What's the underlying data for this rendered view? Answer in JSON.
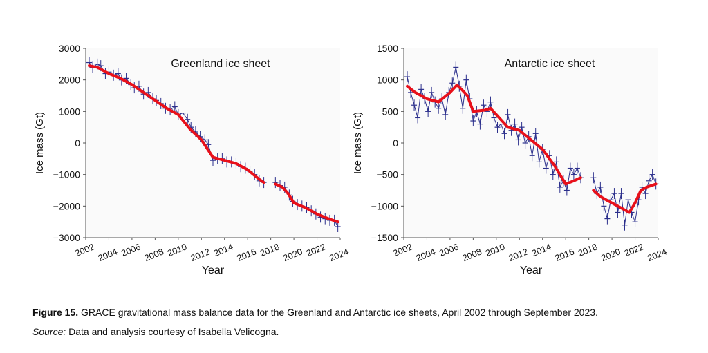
{
  "chart_data": [
    {
      "type": "line",
      "title": "Greenland ice sheet",
      "xlabel": "Year",
      "ylabel": "Ice mass (Gt)",
      "xlim": [
        2002,
        2024
      ],
      "ylim": [
        -3000,
        3000
      ],
      "xticks": [
        "2002",
        "2004",
        "2006",
        "2008",
        "2010",
        "2012",
        "2014",
        "2016",
        "2018",
        "2020",
        "2022",
        "2024"
      ],
      "yticks": [
        "3000",
        "2000",
        "1000",
        "0",
        "−1000",
        "−2000",
        "−3000"
      ],
      "series": [
        {
          "kind": "monthly-observations",
          "color": "#2b2f8c",
          "segments": [
            {
              "x": [
                2002.3,
                2002.6,
                2003.0,
                2003.3,
                2003.7,
                2004.0,
                2004.4,
                2004.8,
                2005.1,
                2005.5,
                2005.9,
                2006.2,
                2006.6,
                2007.0,
                2007.4,
                2007.8,
                2008.1,
                2008.5,
                2008.9,
                2009.3,
                2009.7,
                2010.0,
                2010.4,
                2010.8,
                2011.1,
                2011.5,
                2011.9,
                2012.3,
                2012.6,
                2013.0,
                2013.4,
                2013.8,
                2014.2,
                2014.6,
                2015.0,
                2015.4,
                2015.8,
                2016.2,
                2016.6,
                2017.0,
                2017.4
              ],
              "y": [
                2550,
                2400,
                2500,
                2450,
                2200,
                2250,
                2150,
                2200,
                2000,
                2050,
                1850,
                1750,
                1800,
                1550,
                1600,
                1400,
                1350,
                1250,
                1100,
                1050,
                1150,
                900,
                950,
                750,
                500,
                350,
                200,
                100,
                -50,
                -550,
                -500,
                -500,
                -600,
                -600,
                -650,
                -750,
                -800,
                -900,
                -1000,
                -1200,
                -1250
              ]
            },
            {
              "x": [
                2018.4,
                2018.8,
                2019.2,
                2019.6,
                2019.9,
                2020.3,
                2020.7,
                2021.1,
                2021.5,
                2021.9,
                2022.3,
                2022.7,
                2023.1,
                2023.5,
                2023.8
              ],
              "y": [
                -1250,
                -1350,
                -1400,
                -1650,
                -1850,
                -1950,
                -2000,
                -2050,
                -2150,
                -2250,
                -2350,
                -2400,
                -2450,
                -2450,
                -2650
              ]
            }
          ]
        },
        {
          "kind": "smoothed-trend",
          "color": "#e8101a",
          "segments": [
            {
              "x": [
                2002.3,
                2003.0,
                2004.0,
                2005.0,
                2006.0,
                2007.0,
                2008.0,
                2009.0,
                2010.0,
                2011.0,
                2012.0,
                2013.0,
                2014.0,
                2015.0,
                2016.0,
                2017.0,
                2017.4
              ],
              "y": [
                2450,
                2400,
                2200,
                2050,
                1850,
                1600,
                1350,
                1100,
                900,
                450,
                100,
                -450,
                -550,
                -650,
                -850,
                -1150,
                -1250
              ]
            },
            {
              "x": [
                2018.4,
                2019.0,
                2019.5,
                2020.0,
                2021.0,
                2022.0,
                2023.0,
                2023.8
              ],
              "y": [
                -1300,
                -1400,
                -1600,
                -1900,
                -2050,
                -2250,
                -2400,
                -2500
              ]
            }
          ]
        }
      ]
    },
    {
      "type": "line",
      "title": "Antarctic ice sheet",
      "xlabel": "Year",
      "ylabel": "Ice mass (Gt)",
      "xlim": [
        2002,
        2024
      ],
      "ylim": [
        -1500,
        1500
      ],
      "xticks": [
        "2002",
        "2004",
        "2006",
        "2008",
        "2010",
        "2012",
        "2014",
        "2016",
        "2018",
        "2020",
        "2022",
        "2024"
      ],
      "yticks": [
        "1500",
        "1000",
        "500",
        "0",
        "−500",
        "−1000",
        "−1500"
      ],
      "series": [
        {
          "kind": "monthly-observations",
          "color": "#2b2f8c",
          "segments": [
            {
              "x": [
                2002.3,
                2002.6,
                2002.9,
                2003.2,
                2003.5,
                2003.8,
                2004.1,
                2004.4,
                2004.7,
                2005.0,
                2005.3,
                2005.6,
                2005.9,
                2006.2,
                2006.5,
                2006.8,
                2007.1,
                2007.4,
                2007.7,
                2008.0,
                2008.3,
                2008.6,
                2008.9,
                2009.2,
                2009.5,
                2009.8,
                2010.1,
                2010.4,
                2010.7,
                2011.0,
                2011.3,
                2011.6,
                2011.9,
                2012.2,
                2012.5,
                2012.8,
                2013.1,
                2013.4,
                2013.7,
                2014.0,
                2014.3,
                2014.6,
                2014.9,
                2015.2,
                2015.5,
                2015.8,
                2016.1,
                2016.4,
                2016.7,
                2017.0,
                2017.3
              ],
              "y": [
                1050,
                800,
                600,
                400,
                850,
                700,
                500,
                800,
                650,
                550,
                700,
                450,
                800,
                950,
                1200,
                900,
                550,
                1000,
                700,
                350,
                500,
                300,
                600,
                500,
                650,
                400,
                250,
                300,
                150,
                450,
                200,
                300,
                50,
                250,
                0,
                100,
                -200,
                150,
                -300,
                -100,
                -400,
                -200,
                -500,
                -300,
                -700,
                -600,
                -750,
                -400,
                -500,
                -400,
                -550
              ]
            },
            {
              "x": [
                2018.4,
                2018.7,
                2019.0,
                2019.3,
                2019.6,
                2019.9,
                2020.2,
                2020.5,
                2020.8,
                2021.1,
                2021.4,
                2021.7,
                2022.0,
                2022.3,
                2022.6,
                2022.9,
                2023.2,
                2023.5,
                2023.8
              ],
              "y": [
                -550,
                -800,
                -700,
                -1000,
                -1200,
                -900,
                -800,
                -1100,
                -800,
                -1300,
                -900,
                -1100,
                -1250,
                -900,
                -700,
                -800,
                -600,
                -500,
                -650
              ]
            }
          ]
        },
        {
          "kind": "smoothed-trend",
          "color": "#e8101a",
          "segments": [
            {
              "x": [
                2002.3,
                2003.0,
                2004.0,
                2005.0,
                2006.0,
                2006.6,
                2007.0,
                2007.5,
                2008.0,
                2009.0,
                2009.5,
                2010.0,
                2011.0,
                2012.0,
                2013.0,
                2014.0,
                2015.0,
                2016.0,
                2016.7,
                2017.3
              ],
              "y": [
                900,
                800,
                700,
                650,
                800,
                920,
                850,
                750,
                500,
                520,
                550,
                450,
                250,
                200,
                50,
                -100,
                -350,
                -650,
                -600,
                -550
              ]
            },
            {
              "x": [
                2018.4,
                2019.0,
                2019.5,
                2020.0,
                2020.5,
                2021.0,
                2021.5,
                2022.0,
                2022.5,
                2023.0,
                2023.8
              ],
              "y": [
                -750,
                -850,
                -900,
                -950,
                -1000,
                -1050,
                -1100,
                -950,
                -750,
                -700,
                -650
              ]
            }
          ]
        }
      ]
    }
  ],
  "caption": {
    "figure_label": "Figure 15.",
    "text": " GRACE gravitational mass balance data for the Greenland and Antarctic ice sheets, April 2002 through September 2023.",
    "source_label": "Source:",
    "source_text": " Data and analysis courtesy of Isabella Velicogna."
  }
}
